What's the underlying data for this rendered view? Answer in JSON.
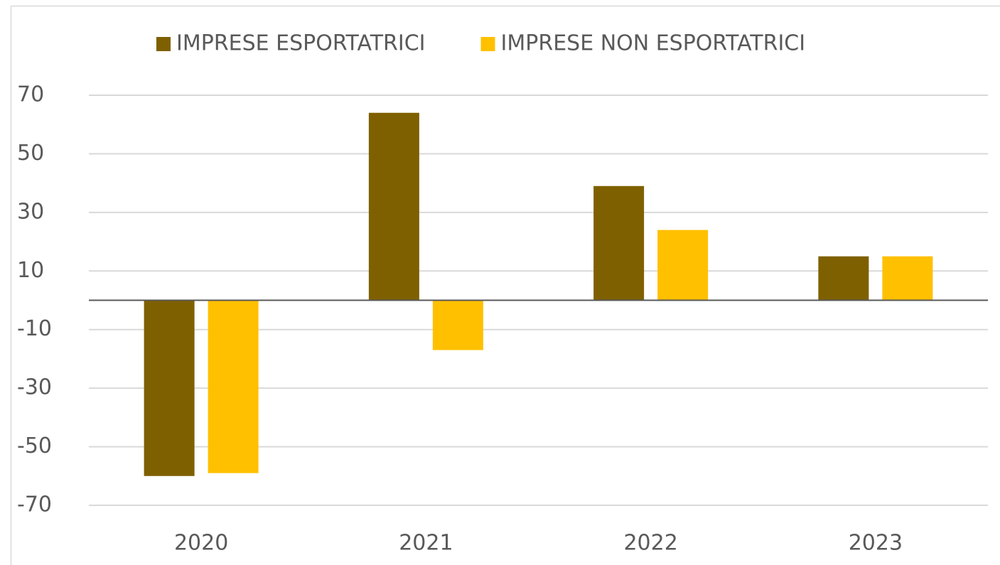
{
  "chart_data": {
    "type": "bar",
    "categories": [
      "2020",
      "2021",
      "2022",
      "2023"
    ],
    "series": [
      {
        "name": "IMPRESE ESPORTATRICI",
        "color": "#7f6000",
        "values": [
          -60,
          64,
          39,
          15
        ]
      },
      {
        "name": "IMPRESE NON ESPORTATRICI",
        "color": "#ffc000",
        "values": [
          -59,
          -17,
          24,
          15
        ]
      }
    ],
    "ylim": [
      -70,
      70
    ],
    "yticks": [
      -70,
      -50,
      -30,
      -10,
      10,
      30,
      50,
      70
    ],
    "grid": true,
    "legend": "top"
  }
}
